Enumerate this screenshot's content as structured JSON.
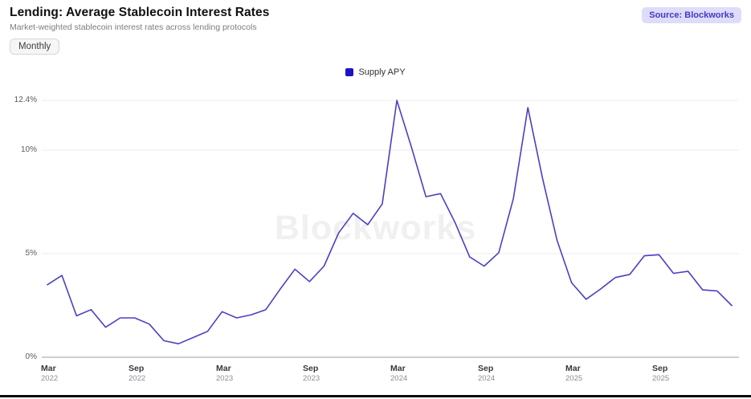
{
  "header": {
    "title": "Lending: Average Stablecoin Interest Rates",
    "subtitle": "Market-weighted stablecoin interest rates across lending protocols",
    "source_badge": "Source: Blockworks"
  },
  "toolbar": {
    "frequency_label": "Monthly"
  },
  "legend": {
    "items": [
      {
        "label": "Supply APY",
        "color": "#1c13c4"
      }
    ]
  },
  "watermark": "Blockworks",
  "colors": {
    "line": "#4940c4",
    "legend_swatch": "#1c13c4",
    "badge_bg": "#dedcf9",
    "badge_text": "#4338c9",
    "grid": "#ededf0",
    "axis": "#c7c7cc"
  },
  "chart_data": {
    "type": "line",
    "title": "Lending: Average Stablecoin Interest Rates",
    "unit": "%",
    "grid": "horizontal",
    "legend_position": "top-center",
    "ylim": [
      0,
      12.4
    ],
    "y_ticks": [
      {
        "label": "12.4%",
        "value": 12.4
      },
      {
        "label": "10%",
        "value": 10
      },
      {
        "label": "5%",
        "value": 5
      },
      {
        "label": "0%",
        "value": 0
      }
    ],
    "x_ticks": [
      {
        "month": "Mar",
        "year": "2022"
      },
      {
        "month": "Sep",
        "year": "2022"
      },
      {
        "month": "Mar",
        "year": "2023"
      },
      {
        "month": "Sep",
        "year": "2023"
      },
      {
        "month": "Mar",
        "year": "2024"
      },
      {
        "month": "Sep",
        "year": "2024"
      },
      {
        "month": "Mar",
        "year": "2025"
      },
      {
        "month": "Sep",
        "year": "2025"
      }
    ],
    "series": [
      {
        "name": "Supply APY",
        "color": "#4940c4",
        "x": [
          "Mar 2022",
          "Apr 2022",
          "May 2022",
          "Jun 2022",
          "Jul 2022",
          "Aug 2022",
          "Sep 2022",
          "Oct 2022",
          "Nov 2022",
          "Dec 2022",
          "Jan 2023",
          "Feb 2023",
          "Mar 2023",
          "Apr 2023",
          "May 2023",
          "Jun 2023",
          "Jul 2023",
          "Aug 2023",
          "Sep 2023",
          "Oct 2023",
          "Nov 2023",
          "Dec 2023",
          "Jan 2024",
          "Feb 2024",
          "Mar 2024",
          "Apr 2024",
          "May 2024",
          "Jun 2024",
          "Jul 2024",
          "Aug 2024",
          "Sep 2024",
          "Oct 2024",
          "Nov 2024",
          "Dec 2024",
          "Jan 2025",
          "Feb 2025",
          "Mar 2025",
          "Apr 2025",
          "May 2025",
          "Jun 2025",
          "Jul 2025",
          "Aug 2025",
          "Sep 2025",
          "Oct 2025",
          "Nov 2025",
          "Dec 2025",
          "Jan 2026",
          "Feb 2026"
        ],
        "values": [
          3.5,
          3.95,
          2.0,
          2.3,
          1.45,
          1.9,
          1.9,
          1.6,
          0.8,
          0.65,
          0.95,
          1.25,
          2.2,
          1.9,
          2.05,
          2.3,
          3.3,
          4.25,
          3.65,
          4.4,
          6.0,
          6.95,
          6.4,
          7.4,
          12.4,
          10.15,
          7.75,
          7.9,
          6.5,
          4.85,
          4.4,
          5.05,
          7.65,
          12.05,
          8.65,
          5.65,
          3.6,
          2.8,
          3.3,
          3.85,
          4.0,
          4.9,
          4.95,
          4.05,
          4.15,
          3.25,
          3.2,
          2.5
        ]
      }
    ]
  }
}
